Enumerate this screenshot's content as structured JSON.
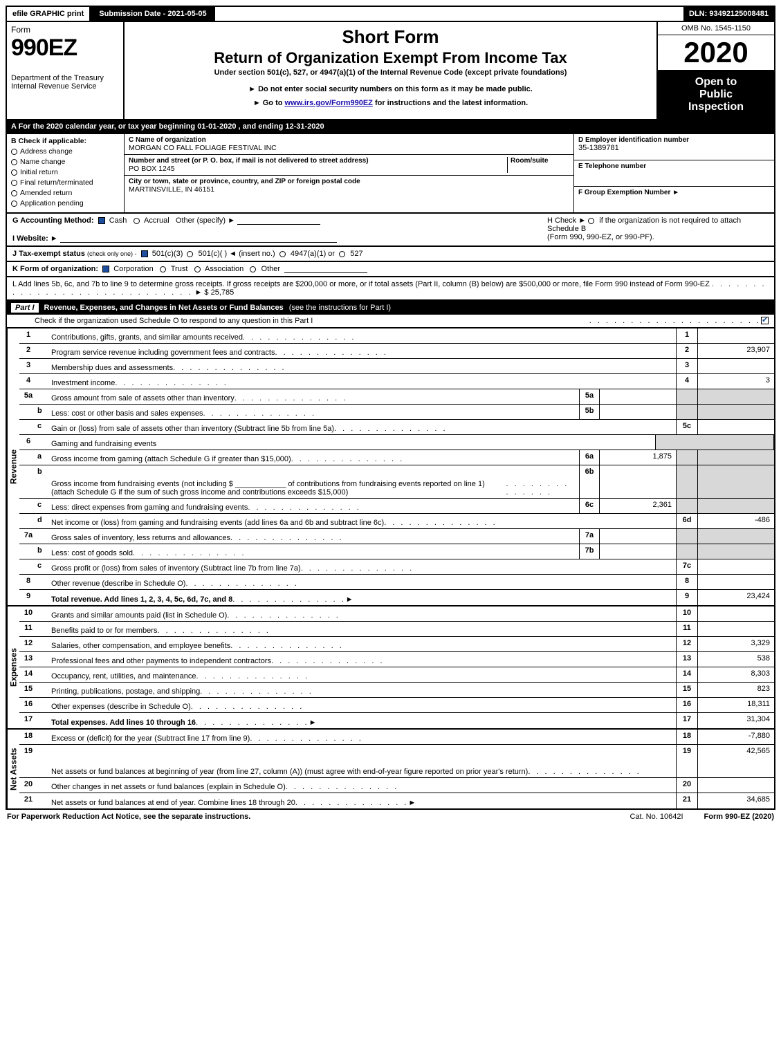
{
  "colors": {
    "black": "#000000",
    "white": "#ffffff",
    "shade": "#d8d8d8",
    "check_blue": "#1d4f9e",
    "link": "#1a0dab"
  },
  "top": {
    "efile": "efile GRAPHIC print",
    "submission": "Submission Date - 2021-05-05",
    "dln": "DLN: 93492125008481"
  },
  "header": {
    "form_word": "Form",
    "form_number": "990EZ",
    "title1": "Short Form",
    "title2": "Return of Organization Exempt From Income Tax",
    "sub1": "Under section 501(c), 527, or 4947(a)(1) of the Internal Revenue Code (except private foundations)",
    "sub2": "► Do not enter social security numbers on this form as it may be made public.",
    "sub3_pre": "► Go to ",
    "sub3_link": "www.irs.gov/Form990EZ",
    "sub3_post": " for instructions and the latest information.",
    "dept1": "Department of the Treasury",
    "dept2": "Internal Revenue Service",
    "omb": "OMB No. 1545-1150",
    "year": "2020",
    "open1": "Open to",
    "open2": "Public",
    "open3": "Inspection"
  },
  "lineA": "A  For the 2020 calendar year, or tax year beginning 01-01-2020 , and ending 12-31-2020",
  "sectionB": {
    "title_letter": "B",
    "title": "Check if applicable:",
    "opts": [
      "Address change",
      "Name change",
      "Initial return",
      "Final return/terminated",
      "Amended return",
      "Application pending"
    ]
  },
  "sectionC": {
    "c_label": "C Name of organization",
    "c_name": "MORGAN CO FALL FOLIAGE FESTIVAL INC",
    "addr_label": "Number and street (or P. O. box, if mail is not delivered to street address)",
    "room_label": "Room/suite",
    "addr": "PO BOX 1245",
    "city_label": "City or town, state or province, country, and ZIP or foreign postal code",
    "city": "MARTINSVILLE, IN  46151"
  },
  "right_cells": {
    "d_label": "D Employer identification number",
    "d_val": "35-1389781",
    "e_label": "E Telephone number",
    "f_label": "F Group Exemption Number   ►"
  },
  "lineG": {
    "label": "G Accounting Method:",
    "cash": "Cash",
    "accrual": "Accrual",
    "other": "Other (specify) ►"
  },
  "lineH": {
    "text1": "H  Check ►",
    "text2": "if the organization is not required to attach Schedule B",
    "text3": "(Form 990, 990-EZ, or 990-PF)."
  },
  "lineI": {
    "label": "I Website: ►"
  },
  "lineJ": {
    "label": "J Tax-exempt status",
    "note": "(check only one) -",
    "o1": "501(c)(3)",
    "o2": "501(c)(  ) ◄ (insert no.)",
    "o3": "4947(a)(1) or",
    "o4": "527"
  },
  "lineK": {
    "label": "K Form of organization:",
    "o1": "Corporation",
    "o2": "Trust",
    "o3": "Association",
    "o4": "Other"
  },
  "lineL": {
    "text": "L Add lines 5b, 6c, and 7b to line 9 to determine gross receipts. If gross receipts are $200,000 or more, or if total assets (Part II, column (B) below) are $500,000 or more, file Form 990 instead of Form 990-EZ",
    "amount": "► $ 25,785"
  },
  "part1": {
    "num": "Part I",
    "title": "Revenue, Expenses, and Changes in Net Assets or Fund Balances",
    "sub": "(see the instructions for Part I)",
    "check_line": "Check if the organization used Schedule O to respond to any question in this Part I"
  },
  "sections": [
    {
      "tab": "Revenue",
      "rows": [
        {
          "o": "1",
          "i": "",
          "txt": "Contributions, gifts, grants, and similar amounts received",
          "end": "1",
          "val": ""
        },
        {
          "o": "2",
          "i": "",
          "txt": "Program service revenue including government fees and contracts",
          "end": "2",
          "val": "23,907"
        },
        {
          "o": "3",
          "i": "",
          "txt": "Membership dues and assessments",
          "end": "3",
          "val": ""
        },
        {
          "o": "4",
          "i": "",
          "txt": "Investment income",
          "end": "4",
          "val": "3"
        },
        {
          "o": "5a",
          "i": "",
          "txt": "Gross amount from sale of assets other than inventory",
          "sub": "5a",
          "subval": "",
          "shade": true
        },
        {
          "o": "",
          "i": "b",
          "txt": "Less: cost or other basis and sales expenses",
          "sub": "5b",
          "subval": "",
          "shade": true
        },
        {
          "o": "",
          "i": "c",
          "txt": "Gain or (loss) from sale of assets other than inventory (Subtract line 5b from line 5a)",
          "end": "5c",
          "val": ""
        },
        {
          "o": "6",
          "i": "",
          "txt": "Gaming and fundraising events",
          "plain": true,
          "shade": true
        },
        {
          "o": "",
          "i": "a",
          "txt": "Gross income from gaming (attach Schedule G if greater than $15,000)",
          "sub": "6a",
          "subval": "1,875",
          "shade": true
        },
        {
          "o": "",
          "i": "b",
          "txt": "Gross income from fundraising events (not including $ ____________ of contributions from fundraising events reported on line 1) (attach Schedule G if the sum of such gross income and contributions exceeds $15,000)",
          "sub": "6b",
          "subval": "",
          "shade": true,
          "tall": true
        },
        {
          "o": "",
          "i": "c",
          "txt": "Less: direct expenses from gaming and fundraising events",
          "sub": "6c",
          "subval": "2,361",
          "shade": true
        },
        {
          "o": "",
          "i": "d",
          "txt": "Net income or (loss) from gaming and fundraising events (add lines 6a and 6b and subtract line 6c)",
          "end": "6d",
          "val": "-486"
        },
        {
          "o": "7a",
          "i": "",
          "txt": "Gross sales of inventory, less returns and allowances",
          "sub": "7a",
          "subval": "",
          "shade": true
        },
        {
          "o": "",
          "i": "b",
          "txt": "Less: cost of goods sold",
          "sub": "7b",
          "subval": "",
          "shade": true
        },
        {
          "o": "",
          "i": "c",
          "txt": "Gross profit or (loss) from sales of inventory (Subtract line 7b from line 7a)",
          "end": "7c",
          "val": ""
        },
        {
          "o": "8",
          "i": "",
          "txt": "Other revenue (describe in Schedule O)",
          "end": "8",
          "val": ""
        },
        {
          "o": "9",
          "i": "",
          "txt": "Total revenue. Add lines 1, 2, 3, 4, 5c, 6d, 7c, and 8",
          "end": "9",
          "val": "23,424",
          "bold": true,
          "arrow": true
        }
      ]
    },
    {
      "tab": "Expenses",
      "rows": [
        {
          "o": "10",
          "i": "",
          "txt": "Grants and similar amounts paid (list in Schedule O)",
          "end": "10",
          "val": ""
        },
        {
          "o": "11",
          "i": "",
          "txt": "Benefits paid to or for members",
          "end": "11",
          "val": ""
        },
        {
          "o": "12",
          "i": "",
          "txt": "Salaries, other compensation, and employee benefits",
          "end": "12",
          "val": "3,329"
        },
        {
          "o": "13",
          "i": "",
          "txt": "Professional fees and other payments to independent contractors",
          "end": "13",
          "val": "538"
        },
        {
          "o": "14",
          "i": "",
          "txt": "Occupancy, rent, utilities, and maintenance",
          "end": "14",
          "val": "8,303"
        },
        {
          "o": "15",
          "i": "",
          "txt": "Printing, publications, postage, and shipping",
          "end": "15",
          "val": "823"
        },
        {
          "o": "16",
          "i": "",
          "txt": "Other expenses (describe in Schedule O)",
          "end": "16",
          "val": "18,311"
        },
        {
          "o": "17",
          "i": "",
          "txt": "Total expenses. Add lines 10 through 16",
          "end": "17",
          "val": "31,304",
          "bold": true,
          "arrow": true
        }
      ]
    },
    {
      "tab": "Net Assets",
      "rows": [
        {
          "o": "18",
          "i": "",
          "txt": "Excess or (deficit) for the year (Subtract line 17 from line 9)",
          "end": "18",
          "val": "-7,880"
        },
        {
          "o": "19",
          "i": "",
          "txt": "Net assets or fund balances at beginning of year (from line 27, column (A)) (must agree with end-of-year figure reported on prior year's return)",
          "end": "19",
          "val": "42,565",
          "tall": true,
          "shade_partial": true
        },
        {
          "o": "20",
          "i": "",
          "txt": "Other changes in net assets or fund balances (explain in Schedule O)",
          "end": "20",
          "val": ""
        },
        {
          "o": "21",
          "i": "",
          "txt": "Net assets or fund balances at end of year. Combine lines 18 through 20",
          "end": "21",
          "val": "34,685",
          "arrow": true
        }
      ]
    }
  ],
  "footer": {
    "left": "For Paperwork Reduction Act Notice, see the separate instructions.",
    "mid": "Cat. No. 10642I",
    "right": "Form 990-EZ (2020)"
  }
}
